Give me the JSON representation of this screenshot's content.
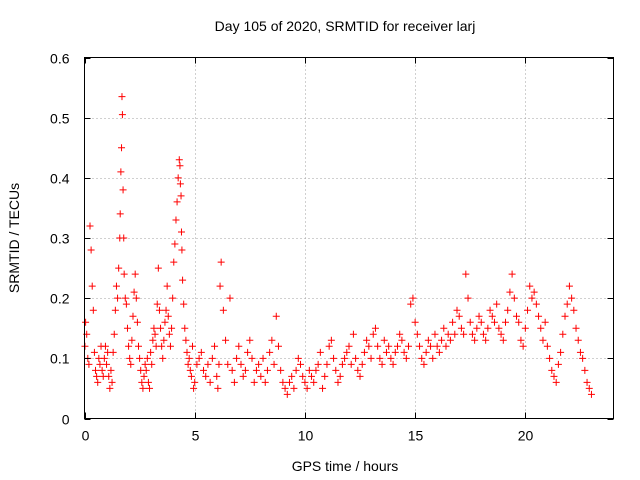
{
  "chart_data": {
    "type": "scatter",
    "title": "Day 105 of 2020, SRMTID for receiver larj",
    "xlabel": "GPS time / hours",
    "ylabel": "SRMTID / TECUs",
    "xlim": [
      0,
      24
    ],
    "ylim": [
      0,
      0.6
    ],
    "xticks": [
      0,
      5,
      10,
      15,
      20
    ],
    "xtick_labels": [
      "0",
      "5",
      "10",
      "15",
      "20"
    ],
    "yticks": [
      0,
      0.1,
      0.2,
      0.3,
      0.4,
      0.5,
      0.6
    ],
    "ytick_labels": [
      "0",
      "0.1",
      "0.2",
      "0.3",
      "0.4",
      "0.5",
      "0.6"
    ],
    "grid": true,
    "marker": "+",
    "color": "#ff0000",
    "series": [
      {
        "name": "SRMTID",
        "x": [
          0.02,
          0.05,
          0.1,
          0.15,
          0.2,
          0.25,
          0.3,
          0.35,
          0.4,
          0.45,
          0.5,
          0.55,
          0.6,
          0.65,
          0.7,
          0.75,
          0.8,
          0.85,
          0.9,
          0.95,
          1.0,
          1.05,
          1.1,
          1.15,
          1.2,
          1.25,
          1.3,
          1.35,
          1.4,
          1.45,
          1.5,
          1.55,
          1.6,
          1.62,
          1.65,
          1.68,
          1.7,
          1.72,
          1.75,
          1.78,
          1.8,
          1.85,
          1.9,
          1.95,
          2.0,
          2.05,
          2.1,
          2.15,
          2.2,
          2.25,
          2.3,
          2.35,
          2.4,
          2.45,
          2.5,
          2.55,
          2.6,
          2.65,
          2.7,
          2.75,
          2.8,
          2.85,
          2.9,
          2.95,
          3.0,
          3.05,
          3.1,
          3.15,
          3.2,
          3.25,
          3.3,
          3.35,
          3.4,
          3.45,
          3.5,
          3.55,
          3.6,
          3.65,
          3.7,
          3.75,
          3.8,
          3.85,
          3.9,
          3.95,
          4.0,
          4.05,
          4.1,
          4.15,
          4.2,
          4.25,
          4.3,
          4.33,
          4.35,
          4.38,
          4.4,
          4.42,
          4.45,
          4.5,
          4.55,
          4.6,
          4.65,
          4.7,
          4.75,
          4.8,
          4.85,
          4.9,
          4.95,
          5.0,
          5.1,
          5.2,
          5.3,
          5.4,
          5.5,
          5.6,
          5.7,
          5.8,
          5.9,
          6.0,
          6.05,
          6.1,
          6.15,
          6.2,
          6.3,
          6.4,
          6.5,
          6.6,
          6.7,
          6.8,
          6.9,
          7.0,
          7.1,
          7.2,
          7.3,
          7.4,
          7.5,
          7.6,
          7.7,
          7.8,
          7.9,
          8.0,
          8.1,
          8.2,
          8.3,
          8.4,
          8.5,
          8.6,
          8.7,
          8.8,
          8.9,
          9.0,
          9.1,
          9.2,
          9.3,
          9.4,
          9.5,
          9.6,
          9.7,
          9.8,
          9.9,
          10.0,
          10.1,
          10.2,
          10.3,
          10.4,
          10.5,
          10.6,
          10.7,
          10.8,
          10.9,
          11.0,
          11.1,
          11.2,
          11.3,
          11.4,
          11.5,
          11.6,
          11.7,
          11.8,
          11.9,
          12.0,
          12.1,
          12.2,
          12.3,
          12.4,
          12.5,
          12.6,
          12.7,
          12.8,
          12.9,
          13.0,
          13.1,
          13.2,
          13.3,
          13.4,
          13.5,
          13.6,
          13.7,
          13.8,
          13.9,
          14.0,
          14.1,
          14.2,
          14.3,
          14.4,
          14.5,
          14.6,
          14.7,
          14.8,
          14.9,
          15.0,
          15.1,
          15.2,
          15.3,
          15.4,
          15.5,
          15.6,
          15.7,
          15.8,
          15.9,
          16.0,
          16.1,
          16.2,
          16.3,
          16.4,
          16.5,
          16.6,
          16.7,
          16.8,
          16.9,
          17.0,
          17.1,
          17.2,
          17.3,
          17.4,
          17.5,
          17.6,
          17.7,
          17.8,
          17.9,
          18.0,
          18.1,
          18.2,
          18.3,
          18.4,
          18.5,
          18.6,
          18.7,
          18.8,
          18.9,
          19.0,
          19.1,
          19.2,
          19.3,
          19.4,
          19.5,
          19.6,
          19.7,
          19.8,
          19.9,
          20.0,
          20.1,
          20.2,
          20.3,
          20.4,
          20.5,
          20.6,
          20.7,
          20.8,
          20.9,
          21.0,
          21.1,
          21.2,
          21.3,
          21.4,
          21.5,
          21.6,
          21.7,
          21.8,
          21.9,
          22.0,
          22.1,
          22.2,
          22.3,
          22.4,
          22.5,
          22.6,
          22.7,
          22.8,
          22.9,
          23.0
        ],
        "y": [
          0.12,
          0.16,
          0.14,
          0.1,
          0.09,
          0.32,
          0.28,
          0.22,
          0.18,
          0.11,
          0.08,
          0.07,
          0.06,
          0.1,
          0.09,
          0.12,
          0.08,
          0.07,
          0.1,
          0.12,
          0.09,
          0.11,
          0.07,
          0.05,
          0.08,
          0.06,
          0.11,
          0.14,
          0.18,
          0.22,
          0.2,
          0.25,
          0.3,
          0.34,
          0.41,
          0.45,
          0.535,
          0.505,
          0.38,
          0.3,
          0.24,
          0.2,
          0.19,
          0.15,
          0.12,
          0.1,
          0.09,
          0.13,
          0.17,
          0.21,
          0.24,
          0.2,
          0.16,
          0.12,
          0.1,
          0.08,
          0.06,
          0.05,
          0.07,
          0.09,
          0.08,
          0.1,
          0.06,
          0.05,
          0.11,
          0.09,
          0.13,
          0.15,
          0.14,
          0.12,
          0.19,
          0.25,
          0.18,
          0.15,
          0.12,
          0.1,
          0.13,
          0.16,
          0.18,
          0.22,
          0.17,
          0.14,
          0.12,
          0.15,
          0.2,
          0.26,
          0.29,
          0.33,
          0.36,
          0.4,
          0.43,
          0.42,
          0.39,
          0.37,
          0.31,
          0.28,
          0.23,
          0.19,
          0.15,
          0.13,
          0.11,
          0.09,
          0.1,
          0.08,
          0.07,
          0.12,
          0.05,
          0.06,
          0.09,
          0.1,
          0.11,
          0.08,
          0.07,
          0.09,
          0.06,
          0.1,
          0.12,
          0.07,
          0.05,
          0.09,
          0.22,
          0.26,
          0.18,
          0.13,
          0.09,
          0.2,
          0.08,
          0.06,
          0.1,
          0.12,
          0.09,
          0.07,
          0.08,
          0.11,
          0.13,
          0.1,
          0.06,
          0.08,
          0.09,
          0.07,
          0.1,
          0.06,
          0.08,
          0.11,
          0.13,
          0.09,
          0.17,
          0.12,
          0.08,
          0.06,
          0.05,
          0.04,
          0.06,
          0.07,
          0.05,
          0.08,
          0.1,
          0.09,
          0.07,
          0.06,
          0.05,
          0.08,
          0.07,
          0.06,
          0.08,
          0.09,
          0.11,
          0.05,
          0.07,
          0.09,
          0.12,
          0.13,
          0.1,
          0.08,
          0.06,
          0.07,
          0.09,
          0.1,
          0.11,
          0.12,
          0.09,
          0.14,
          0.1,
          0.08,
          0.07,
          0.09,
          0.11,
          0.13,
          0.12,
          0.1,
          0.14,
          0.15,
          0.12,
          0.1,
          0.09,
          0.13,
          0.11,
          0.12,
          0.1,
          0.09,
          0.11,
          0.12,
          0.14,
          0.13,
          0.11,
          0.1,
          0.12,
          0.19,
          0.2,
          0.16,
          0.14,
          0.12,
          0.1,
          0.09,
          0.11,
          0.13,
          0.12,
          0.1,
          0.14,
          0.12,
          0.11,
          0.13,
          0.15,
          0.12,
          0.14,
          0.13,
          0.16,
          0.14,
          0.18,
          0.17,
          0.15,
          0.14,
          0.24,
          0.2,
          0.16,
          0.14,
          0.13,
          0.15,
          0.17,
          0.16,
          0.14,
          0.13,
          0.15,
          0.18,
          0.17,
          0.16,
          0.19,
          0.15,
          0.14,
          0.13,
          0.16,
          0.18,
          0.21,
          0.24,
          0.2,
          0.17,
          0.16,
          0.13,
          0.12,
          0.15,
          0.18,
          0.22,
          0.2,
          0.21,
          0.19,
          0.17,
          0.15,
          0.13,
          0.16,
          0.12,
          0.1,
          0.08,
          0.07,
          0.06,
          0.09,
          0.11,
          0.14,
          0.17,
          0.19,
          0.22,
          0.2,
          0.18,
          0.15,
          0.13,
          0.11,
          0.1,
          0.08,
          0.06,
          0.05,
          0.04
        ]
      }
    ]
  }
}
